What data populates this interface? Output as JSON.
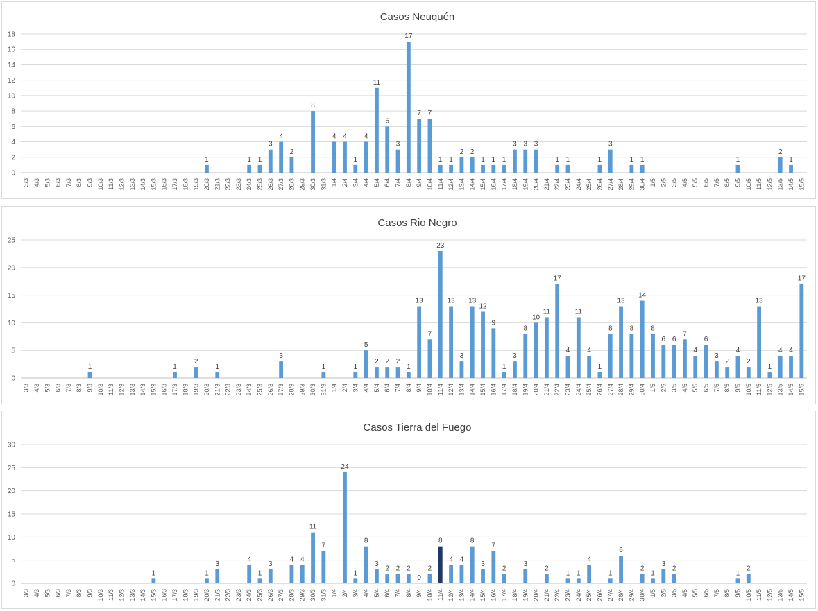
{
  "chart_data": [
    {
      "type": "bar",
      "title": "Casos Neuquén",
      "ylim": [
        0,
        18
      ],
      "yticks": [
        0,
        2,
        4,
        6,
        8,
        10,
        12,
        14,
        16,
        18
      ],
      "grid": true,
      "bar_color": "#5b9bd5",
      "categories": [
        "3/3",
        "4/3",
        "5/3",
        "6/3",
        "7/3",
        "8/3",
        "9/3",
        "10/3",
        "11/3",
        "12/3",
        "13/3",
        "14/3",
        "15/3",
        "16/3",
        "17/3",
        "18/3",
        "19/3",
        "20/3",
        "21/3",
        "22/3",
        "23/3",
        "24/3",
        "25/3",
        "26/3",
        "27/3",
        "28/3",
        "29/3",
        "30/3",
        "31/3",
        "1/4",
        "2/4",
        "3/4",
        "4/4",
        "5/4",
        "6/4",
        "7/4",
        "8/4",
        "9/4",
        "10/4",
        "11/4",
        "12/4",
        "13/4",
        "14/4",
        "15/4",
        "16/4",
        "17/4",
        "18/4",
        "19/4",
        "20/4",
        "21/4",
        "22/4",
        "23/4",
        "24/4",
        "25/4",
        "26/4",
        "27/4",
        "28/4",
        "29/4",
        "30/4",
        "1/5",
        "2/5",
        "3/5",
        "4/5",
        "5/5",
        "6/5",
        "7/5",
        "8/5",
        "9/5",
        "10/5",
        "11/5",
        "12/5",
        "13/5",
        "14/5",
        "15/5"
      ],
      "values": [
        null,
        null,
        null,
        null,
        null,
        null,
        null,
        null,
        null,
        null,
        null,
        null,
        null,
        null,
        null,
        null,
        null,
        1,
        null,
        null,
        null,
        1,
        1,
        3,
        4,
        2,
        null,
        8,
        null,
        4,
        4,
        1,
        4,
        11,
        6,
        3,
        17,
        7,
        7,
        1,
        1,
        2,
        2,
        1,
        1,
        1,
        3,
        3,
        3,
        null,
        1,
        1,
        null,
        null,
        1,
        3,
        null,
        1,
        1,
        null,
        null,
        null,
        null,
        null,
        null,
        null,
        null,
        1,
        null,
        null,
        null,
        2,
        1,
        null
      ]
    },
    {
      "type": "bar",
      "title": "Casos Rio Negro",
      "ylim": [
        0,
        25
      ],
      "yticks": [
        0,
        5,
        10,
        15,
        20,
        25
      ],
      "grid": true,
      "bar_color": "#5b9bd5",
      "categories": [
        "3/3",
        "4/3",
        "5/3",
        "6/3",
        "7/3",
        "8/3",
        "9/3",
        "10/3",
        "11/3",
        "12/3",
        "13/3",
        "14/3",
        "15/3",
        "16/3",
        "17/3",
        "18/3",
        "19/3",
        "20/3",
        "21/3",
        "22/3",
        "23/3",
        "24/3",
        "25/3",
        "26/3",
        "27/3",
        "28/3",
        "29/3",
        "30/3",
        "31/3",
        "1/4",
        "2/4",
        "3/4",
        "4/4",
        "5/4",
        "6/4",
        "7/4",
        "8/4",
        "9/4",
        "10/4",
        "11/4",
        "12/4",
        "13/4",
        "14/4",
        "15/4",
        "16/4",
        "17/4",
        "18/4",
        "19/4",
        "20/4",
        "21/4",
        "22/4",
        "23/4",
        "24/4",
        "25/4",
        "26/4",
        "27/4",
        "28/4",
        "29/4",
        "30/4",
        "1/5",
        "2/5",
        "3/5",
        "4/5",
        "5/5",
        "6/5",
        "7/5",
        "8/5",
        "9/5",
        "10/5",
        "11/5",
        "12/5",
        "13/5",
        "14/5",
        "15/5"
      ],
      "values": [
        null,
        null,
        null,
        null,
        null,
        null,
        1,
        null,
        null,
        null,
        null,
        null,
        null,
        null,
        1,
        null,
        2,
        null,
        1,
        null,
        null,
        null,
        null,
        null,
        3,
        null,
        null,
        null,
        1,
        null,
        null,
        1,
        5,
        2,
        2,
        2,
        1,
        13,
        7,
        23,
        13,
        3,
        13,
        12,
        9,
        1,
        3,
        8,
        10,
        11,
        17,
        4,
        11,
        4,
        1,
        8,
        13,
        8,
        14,
        8,
        6,
        6,
        7,
        4,
        6,
        3,
        2,
        4,
        2,
        13,
        1,
        4,
        4,
        17
      ]
    },
    {
      "type": "bar",
      "title": "Casos Tierra del Fuego",
      "ylim": [
        0,
        30
      ],
      "yticks": [
        0,
        5,
        10,
        15,
        20,
        25,
        30
      ],
      "grid": true,
      "bar_color": "#5b9bd5",
      "highlight_color": "#1f3864",
      "highlight_category": "11/4",
      "categories": [
        "3/3",
        "4/3",
        "5/3",
        "6/3",
        "7/3",
        "8/3",
        "9/3",
        "10/3",
        "11/3",
        "12/3",
        "13/3",
        "14/3",
        "15/3",
        "16/3",
        "17/3",
        "18/3",
        "19/3",
        "20/3",
        "21/3",
        "22/3",
        "23/3",
        "24/3",
        "25/3",
        "26/3",
        "27/3",
        "28/3",
        "29/3",
        "30/3",
        "31/3",
        "1/4",
        "2/4",
        "3/4",
        "4/4",
        "5/4",
        "6/4",
        "7/4",
        "8/4",
        "9/4",
        "10/4",
        "11/4",
        "12/4",
        "13/4",
        "14/4",
        "15/4",
        "16/4",
        "17/4",
        "18/4",
        "19/4",
        "20/4",
        "21/4",
        "22/4",
        "23/4",
        "24/4",
        "25/4",
        "26/4",
        "27/4",
        "28/4",
        "29/4",
        "30/4",
        "1/5",
        "2/5",
        "3/5",
        "4/5",
        "5/5",
        "6/5",
        "7/5",
        "8/5",
        "9/5",
        "10/5",
        "11/5",
        "12/5",
        "13/5",
        "14/5",
        "15/5"
      ],
      "values": [
        null,
        null,
        null,
        null,
        null,
        null,
        null,
        null,
        null,
        null,
        null,
        null,
        1,
        null,
        null,
        null,
        null,
        1,
        3,
        null,
        null,
        4,
        1,
        3,
        null,
        4,
        4,
        11,
        7,
        null,
        24,
        1,
        8,
        3,
        2,
        2,
        2,
        0,
        2,
        8,
        4,
        4,
        8,
        3,
        7,
        2,
        null,
        3,
        null,
        2,
        null,
        1,
        1,
        4,
        null,
        1,
        6,
        null,
        2,
        1,
        3,
        2,
        null,
        null,
        null,
        null,
        null,
        1,
        2,
        null,
        null,
        null,
        null,
        null
      ]
    }
  ]
}
